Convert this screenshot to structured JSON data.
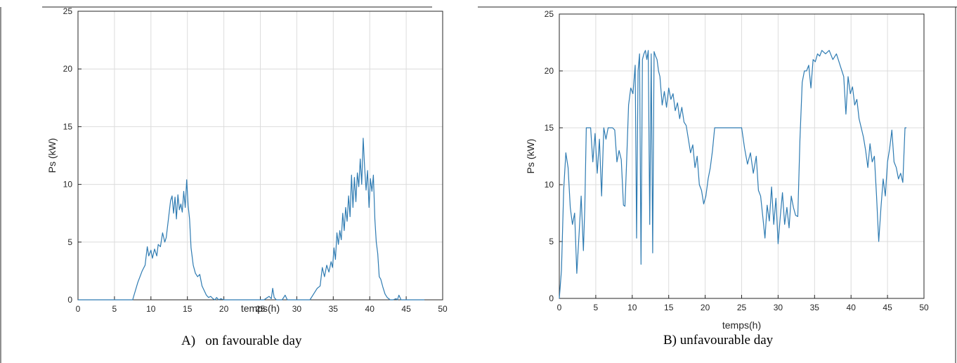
{
  "chart_data": [
    {
      "type": "line",
      "caption": "A)   on favourable day",
      "xlabel": "temps(h)",
      "ylabel": "Ps (kW)",
      "xlim": [
        0,
        50
      ],
      "ylim": [
        0,
        25
      ],
      "xticks": [
        0,
        5,
        10,
        15,
        20,
        25,
        30,
        35,
        40,
        45,
        50
      ],
      "yticks": [
        0,
        5,
        10,
        15,
        20,
        25
      ],
      "grid": true,
      "color": "#2e7bb2",
      "series": [
        {
          "x": [
            0,
            7.5,
            8.2,
            8.8,
            9.2,
            9.5,
            9.7,
            10.0,
            10.2,
            10.5,
            10.8,
            11.0,
            11.3,
            11.6,
            11.9,
            12.1,
            12.4,
            12.7,
            12.9,
            13.1,
            13.3,
            13.5,
            13.7,
            13.9,
            14.1,
            14.3,
            14.5,
            14.7,
            14.9,
            15.1,
            15.3,
            15.5,
            15.8,
            16.1,
            16.4,
            16.7,
            17.0,
            17.3,
            17.6,
            17.9,
            18.2,
            18.5,
            18.8,
            19.0,
            19.3,
            19.6,
            20.0,
            20.5,
            21.0,
            25.5,
            26.2,
            26.5,
            26.7,
            26.9,
            27.2,
            28.0,
            28.4,
            28.7,
            29.0,
            31.8,
            32.3,
            32.8,
            33.2,
            33.5,
            33.8,
            34.1,
            34.4,
            34.7,
            34.9,
            35.1,
            35.3,
            35.5,
            35.7,
            35.9,
            36.1,
            36.3,
            36.5,
            36.7,
            36.9,
            37.1,
            37.3,
            37.5,
            37.7,
            37.9,
            38.1,
            38.3,
            38.5,
            38.7,
            38.9,
            39.1,
            39.3,
            39.5,
            39.7,
            39.9,
            40.1,
            40.3,
            40.5,
            40.7,
            40.9,
            41.1,
            41.3,
            41.5,
            41.8,
            42.1,
            42.4,
            42.8,
            43.2,
            43.6,
            43.8,
            44.0,
            44.3,
            44.6,
            45.0,
            47.5
          ],
          "y": [
            0,
            0,
            1.5,
            2.5,
            3.0,
            4.6,
            3.8,
            4.3,
            3.6,
            4.4,
            3.8,
            4.8,
            4.6,
            5.8,
            5.0,
            5.4,
            7.0,
            8.6,
            9.0,
            7.5,
            8.9,
            7.0,
            9.1,
            7.8,
            8.3,
            7.6,
            9.4,
            8.0,
            10.4,
            8.2,
            7.0,
            4.5,
            3.0,
            2.3,
            2.0,
            2.2,
            1.2,
            0.8,
            0.4,
            0.2,
            0.3,
            0.1,
            0.0,
            0.2,
            0.0,
            0.1,
            0.0,
            0.0,
            0.0,
            0.0,
            0.3,
            0.1,
            1.0,
            0.2,
            0.0,
            0.0,
            0.4,
            0.0,
            0.0,
            0.0,
            0.5,
            1.0,
            1.2,
            2.8,
            2.0,
            3.0,
            2.4,
            3.3,
            2.8,
            4.5,
            3.5,
            5.8,
            4.8,
            6.0,
            5.2,
            7.5,
            6.0,
            8.0,
            6.8,
            9.0,
            7.2,
            10.8,
            8.0,
            10.6,
            8.5,
            11.0,
            9.8,
            12.2,
            10.0,
            14.0,
            11.5,
            9.5,
            11.2,
            8.0,
            10.5,
            9.4,
            10.8,
            7.0,
            5.0,
            4.0,
            2.0,
            1.8,
            1.1,
            0.5,
            0.2,
            0.0,
            0.0,
            0.1,
            0.0,
            0.4,
            0.0,
            0.0,
            0.0,
            0.0
          ]
        }
      ]
    },
    {
      "type": "line",
      "caption": "B) unfavourable day",
      "xlabel": "temps(h)",
      "ylabel": "Ps (kW)",
      "xlim": [
        0,
        50
      ],
      "ylim": [
        0,
        25
      ],
      "xticks": [
        0,
        5,
        10,
        15,
        20,
        25,
        30,
        35,
        40,
        45,
        50
      ],
      "yticks": [
        0,
        5,
        10,
        15,
        20,
        25
      ],
      "grid": true,
      "color": "#2e7bb2",
      "series": [
        {
          "x": [
            0,
            0.3,
            0.6,
            0.9,
            1.2,
            1.5,
            1.8,
            2.1,
            2.4,
            2.7,
            3.0,
            3.3,
            3.5,
            3.7,
            4.0,
            4.3,
            4.6,
            4.9,
            5.2,
            5.5,
            5.8,
            6.1,
            6.4,
            6.7,
            7.0,
            7.3,
            7.6,
            7.9,
            8.2,
            8.5,
            8.8,
            9.0,
            9.2,
            9.5,
            9.8,
            10.1,
            10.4,
            10.6,
            10.8,
            11.0,
            11.2,
            11.4,
            11.6,
            11.8,
            12.0,
            12.2,
            12.4,
            12.6,
            12.8,
            13.0,
            13.2,
            13.4,
            13.6,
            13.8,
            14.1,
            14.4,
            14.7,
            15.0,
            15.3,
            15.6,
            15.9,
            16.2,
            16.5,
            16.8,
            17.1,
            17.4,
            17.7,
            18.0,
            18.3,
            18.6,
            18.9,
            19.2,
            19.5,
            19.8,
            20.1,
            20.4,
            20.7,
            21.0,
            21.3,
            21.6,
            25.0,
            25.4,
            25.8,
            26.2,
            26.6,
            27.0,
            27.3,
            27.6,
            27.9,
            28.2,
            28.5,
            28.8,
            29.1,
            29.4,
            29.7,
            30.0,
            30.3,
            30.6,
            30.9,
            31.2,
            31.5,
            31.8,
            32.1,
            32.4,
            32.7,
            33.0,
            33.3,
            33.6,
            33.9,
            34.2,
            34.5,
            34.8,
            35.1,
            35.4,
            35.7,
            36.0,
            36.5,
            37.0,
            37.5,
            38.0,
            38.5,
            39.0,
            39.3,
            39.6,
            39.9,
            40.2,
            40.5,
            40.8,
            41.1,
            41.4,
            41.7,
            42.0,
            42.3,
            42.6,
            42.9,
            43.2,
            43.5,
            43.8,
            44.1,
            44.4,
            44.7,
            45.0,
            45.3,
            45.6,
            45.9,
            46.2,
            46.5,
            46.8,
            47.1,
            47.4,
            47.6
          ],
          "y": [
            0,
            2.5,
            9.5,
            12.8,
            11.5,
            8.0,
            6.5,
            7.5,
            2.2,
            5.5,
            9.0,
            4.2,
            8.0,
            15.0,
            15.0,
            15.0,
            12.0,
            14.5,
            11.0,
            14.0,
            9.0,
            15.0,
            14.0,
            15.0,
            15.0,
            15.0,
            14.8,
            12.0,
            13.0,
            12.2,
            8.2,
            8.1,
            11.5,
            17.0,
            18.5,
            18.0,
            20.5,
            5.3,
            20.0,
            21.5,
            3.0,
            21.0,
            21.5,
            21.8,
            21.0,
            21.8,
            6.5,
            21.5,
            4.0,
            21.7,
            21.3,
            21.0,
            20.0,
            19.5,
            17.0,
            18.2,
            16.8,
            18.5,
            17.5,
            18.0,
            16.5,
            17.2,
            15.8,
            16.8,
            15.5,
            15.2,
            14.0,
            12.8,
            13.5,
            11.5,
            12.5,
            10.0,
            9.5,
            8.3,
            9.0,
            10.5,
            11.5,
            13.0,
            15.0,
            15.0,
            15.0,
            13.2,
            11.8,
            12.8,
            11.0,
            12.5,
            9.5,
            9.0,
            7.2,
            5.3,
            8.2,
            6.8,
            9.8,
            6.5,
            8.8,
            4.8,
            7.2,
            9.3,
            6.5,
            8.0,
            6.2,
            9.0,
            8.0,
            7.3,
            7.2,
            14.0,
            19.0,
            20.0,
            20.0,
            20.5,
            18.5,
            21.0,
            20.8,
            21.5,
            21.3,
            21.8,
            21.5,
            21.8,
            21.0,
            21.5,
            20.5,
            19.5,
            16.2,
            19.5,
            18.0,
            18.6,
            17.0,
            17.5,
            15.8,
            15.0,
            14.2,
            13.0,
            11.5,
            13.6,
            12.0,
            12.5,
            9.0,
            5.0,
            8.0,
            10.5,
            9.0,
            12.0,
            13.2,
            14.8,
            12.0,
            11.5,
            10.5,
            11.0,
            10.2,
            15.0,
            15.0
          ]
        }
      ]
    }
  ]
}
